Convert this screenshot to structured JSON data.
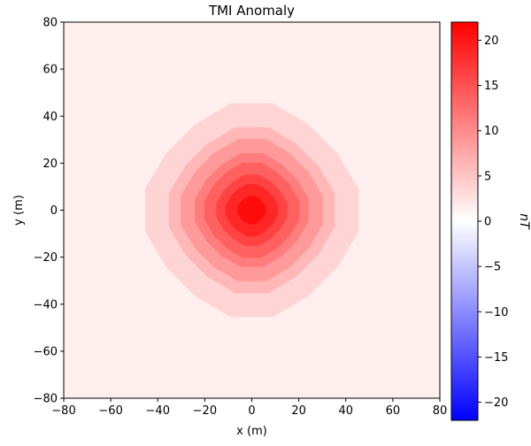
{
  "chart_data": {
    "type": "contour",
    "title": "TMI Anomaly",
    "xlabel": "x (m)",
    "ylabel": "y (m)",
    "xlim": [
      -80,
      80
    ],
    "ylim": [
      -80,
      80
    ],
    "x_ticks": [
      -80,
      -60,
      -40,
      -20,
      0,
      20,
      40,
      60,
      80
    ],
    "y_ticks": [
      -80,
      -60,
      -40,
      -20,
      0,
      20,
      40,
      60,
      80
    ],
    "colormap": "bwr",
    "colorbar": {
      "label": "nT",
      "range": [
        -22,
        22
      ],
      "ticks": [
        -20,
        -15,
        -10,
        -5,
        0,
        5,
        10,
        15,
        20
      ]
    },
    "anomaly": {
      "center": [
        0,
        0
      ],
      "peak_value": 22,
      "background_value": 1.5,
      "contours_approx": [
        {
          "level": 2.5,
          "radius": 45
        },
        {
          "level": 5,
          "radius": 35
        },
        {
          "level": 7.5,
          "radius": 30
        },
        {
          "level": 10,
          "radius": 24
        },
        {
          "level": 12.5,
          "radius": 20
        },
        {
          "level": 15,
          "radius": 15
        },
        {
          "level": 17.5,
          "radius": 11
        },
        {
          "level": 20,
          "radius": 6
        }
      ]
    }
  }
}
